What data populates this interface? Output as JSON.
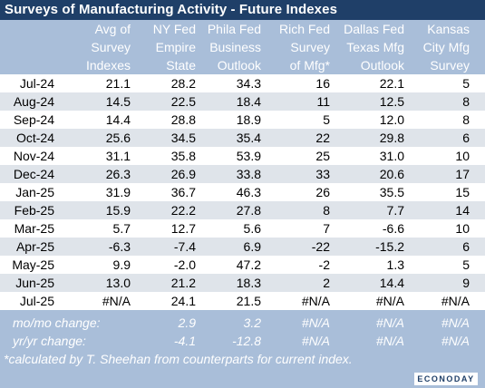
{
  "title": "Surveys of Manufacturing Activity - Future Indexes",
  "columns": [
    {
      "lines": [
        "Avg of",
        "Survey",
        "Indexes"
      ]
    },
    {
      "lines": [
        "NY Fed",
        "Empire",
        "State"
      ]
    },
    {
      "lines": [
        "Phila Fed",
        "Business",
        "Outlook"
      ]
    },
    {
      "lines": [
        "Rich Fed",
        "Survey",
        "of Mfg*"
      ]
    },
    {
      "lines": [
        "Dallas Fed",
        "Texas Mfg",
        "Outlook"
      ]
    },
    {
      "lines": [
        "Kansas",
        "City Mfg",
        "Survey"
      ]
    }
  ],
  "rows": [
    {
      "label": "Jul-24",
      "values": [
        "21.1",
        "28.2",
        "34.3",
        "16",
        "22.1",
        "5"
      ]
    },
    {
      "label": "Aug-24",
      "values": [
        "14.5",
        "22.5",
        "18.4",
        "11",
        "12.5",
        "8"
      ]
    },
    {
      "label": "Sep-24",
      "values": [
        "14.4",
        "28.8",
        "18.9",
        "5",
        "12.0",
        "8"
      ]
    },
    {
      "label": "Oct-24",
      "values": [
        "25.6",
        "34.5",
        "35.4",
        "22",
        "29.8",
        "6"
      ]
    },
    {
      "label": "Nov-24",
      "values": [
        "31.1",
        "35.8",
        "53.9",
        "25",
        "31.0",
        "10"
      ]
    },
    {
      "label": "Dec-24",
      "values": [
        "26.3",
        "26.9",
        "33.8",
        "33",
        "20.6",
        "17"
      ]
    },
    {
      "label": "Jan-25",
      "values": [
        "31.9",
        "36.7",
        "46.3",
        "26",
        "35.5",
        "15"
      ]
    },
    {
      "label": "Feb-25",
      "values": [
        "15.9",
        "22.2",
        "27.8",
        "8",
        "7.7",
        "14"
      ]
    },
    {
      "label": "Mar-25",
      "values": [
        "5.7",
        "12.7",
        "5.6",
        "7",
        "-6.6",
        "10"
      ]
    },
    {
      "label": "Apr-25",
      "values": [
        "-6.3",
        "-7.4",
        "6.9",
        "-22",
        "-15.2",
        "6"
      ]
    },
    {
      "label": "May-25",
      "values": [
        "9.9",
        "-2.0",
        "47.2",
        "-2",
        "1.3",
        "5"
      ]
    },
    {
      "label": "Jun-25",
      "values": [
        "13.0",
        "21.2",
        "18.3",
        "2",
        "14.4",
        "9"
      ]
    },
    {
      "label": "Jul-25",
      "values": [
        "#N/A",
        "24.1",
        "21.5",
        "#N/A",
        "#N/A",
        "#N/A"
      ]
    }
  ],
  "footer": {
    "mom": {
      "label": "mo/mo change:",
      "values": [
        "",
        "2.9",
        "3.2",
        "#N/A",
        "#N/A",
        "#N/A"
      ]
    },
    "yoy": {
      "label": "yr/yr change:",
      "values": [
        "",
        "-4.1",
        "-12.8",
        "#N/A",
        "#N/A",
        "#N/A"
      ]
    },
    "note": "*calculated by T. Sheehan from counterparts for current index."
  },
  "logo_text": "ECONODAY",
  "colors": {
    "title_bg": "#1f3f68",
    "header_bg": "#a9bed9",
    "stripe": "#dfe4ea"
  }
}
